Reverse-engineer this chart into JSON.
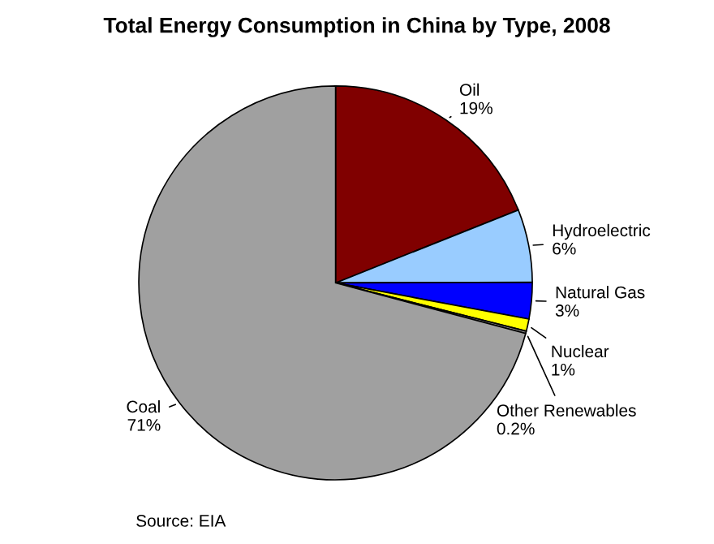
{
  "chart_data": {
    "type": "pie",
    "title": "Total Energy Consumption in China by Type, 2008",
    "categories": [
      "Oil",
      "Hydroelectric",
      "Natural Gas",
      "Nuclear",
      "Other Renewables",
      "Coal"
    ],
    "values": [
      19,
      6,
      3,
      1,
      0.2,
      71
    ],
    "value_labels": [
      "19%",
      "6%",
      "3%",
      "1%",
      "0.2%",
      "71%"
    ],
    "colors": [
      "#800000",
      "#99ccff",
      "#0000ff",
      "#ffff00",
      "#808080",
      "#a0a0a0"
    ],
    "annotations": [
      "Source: EIA"
    ]
  }
}
